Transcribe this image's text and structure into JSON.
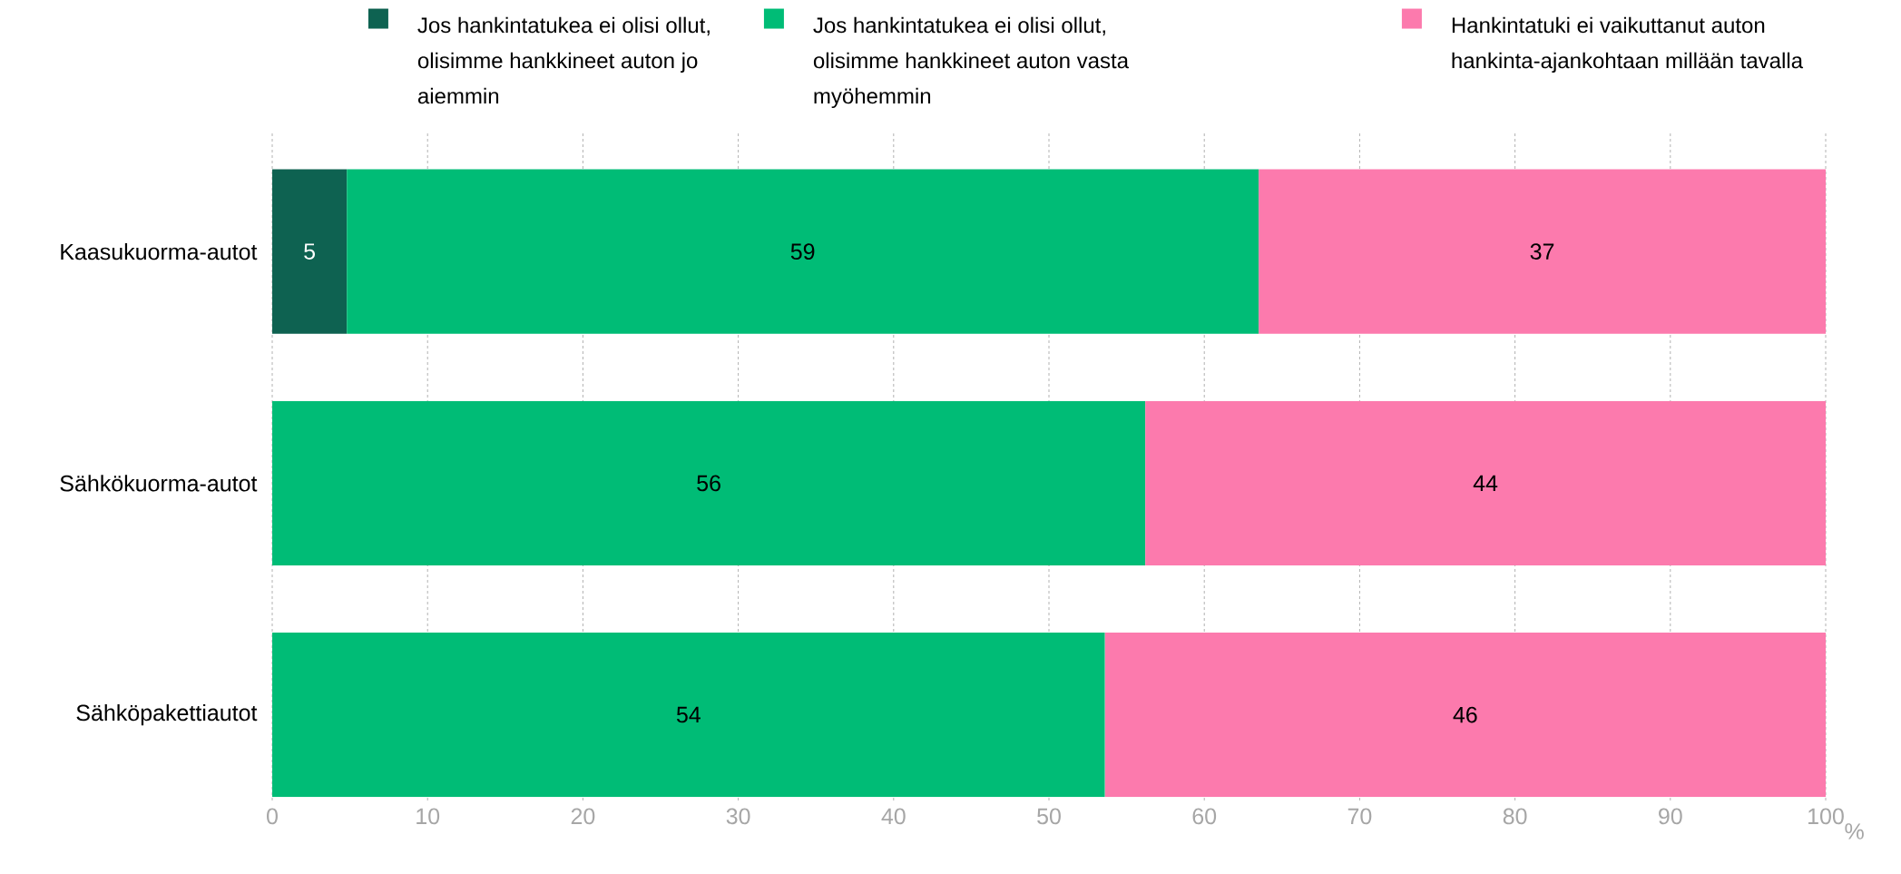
{
  "chart_data": {
    "type": "bar",
    "orientation": "horizontal",
    "stacked": true,
    "categories": [
      "Kaasukuorma-autot",
      "Sähkökuorma-autot",
      "Sähköpakettiautot"
    ],
    "series": [
      {
        "name": "Jos hankintatukea ei olisi ollut, olisimme hankkineet auton jo aiemmin",
        "color": "#0e6251",
        "values": [
          4.8,
          null,
          null
        ],
        "value_labels": [
          "5",
          null,
          null
        ]
      },
      {
        "name": "Jos hankintatukea ei olisi ollut, olisimme hankkineet auton vasta myöhemmin",
        "color": "#00bc76",
        "values": [
          58.7,
          56.2,
          53.6
        ],
        "value_labels": [
          "59",
          "56",
          "54"
        ]
      },
      {
        "name": "Hankintatuki ei vaikuttanut auton hankinta-ajankohtaan millään tavalla",
        "color": "#fc7aad",
        "values": [
          36.5,
          43.8,
          46.4
        ],
        "value_labels": [
          "37",
          "44",
          "46"
        ]
      }
    ],
    "xlabel": "%",
    "xlim": [
      0,
      100
    ],
    "xticks": [
      0,
      10,
      20,
      30,
      40,
      50,
      60,
      70,
      80,
      90,
      100
    ],
    "grid": "x",
    "legend": "top"
  }
}
